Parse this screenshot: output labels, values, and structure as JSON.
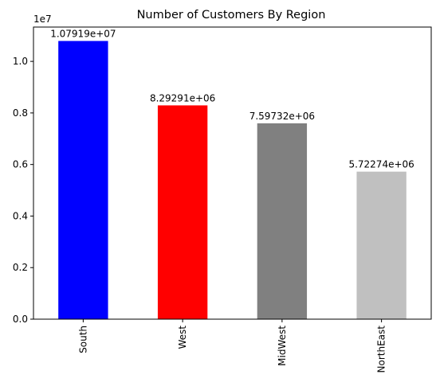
{
  "chart_data": {
    "type": "bar",
    "title": "Number of Customers By Region",
    "xlabel": "",
    "ylabel": "",
    "categories": [
      "South",
      "West",
      "MidWest",
      "NorthEast"
    ],
    "values": [
      10791900,
      8292910,
      7597320,
      5722740
    ],
    "value_labels": [
      "1.07919e+07",
      "8.29291e+06",
      "7.59732e+06",
      "5.72274e+06"
    ],
    "bar_colors": [
      "#0000ff",
      "#ff0000",
      "#808080",
      "#c0c0c0"
    ],
    "ylim": [
      0,
      11331495
    ],
    "y_ticks": [
      0,
      2000000,
      4000000,
      6000000,
      8000000,
      10000000
    ],
    "y_tick_labels": [
      "0.0",
      "0.2",
      "0.4",
      "0.6",
      "0.8",
      "1.0"
    ],
    "y_offset_label": "1e7",
    "grid": false,
    "legend": "none"
  }
}
